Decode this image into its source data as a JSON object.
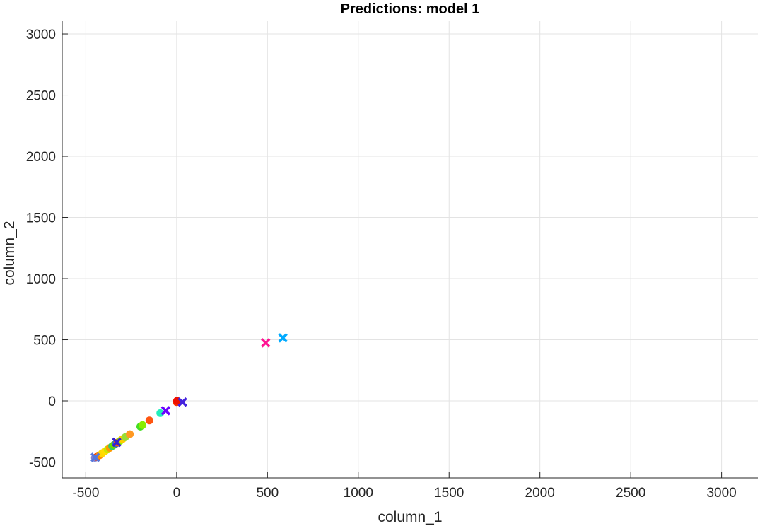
{
  "chart_data": {
    "type": "scatter",
    "title": "Predictions: model 1",
    "xlabel": "column_1",
    "ylabel": "column_2",
    "xlim": [
      -630,
      3200
    ],
    "ylim": [
      -630,
      3110
    ],
    "xticks": [
      -500,
      0,
      500,
      1000,
      1500,
      2000,
      2500,
      3000
    ],
    "yticks": [
      -500,
      0,
      500,
      1000,
      1500,
      2000,
      2500,
      3000
    ],
    "xtick_labels": [
      "-500",
      "0",
      "500",
      "1000",
      "1500",
      "2000",
      "2500",
      "3000"
    ],
    "ytick_labels": [
      "-500",
      "0",
      "500",
      "1000",
      "1500",
      "2000",
      "2500",
      "3000"
    ],
    "grid": true,
    "series": [
      {
        "marker": "circle",
        "points": [
          {
            "x": -450,
            "y": -465,
            "color": "#7f7fcf"
          },
          {
            "x": -440,
            "y": -458,
            "color": "#e8381a"
          },
          {
            "x": -425,
            "y": -445,
            "color": "#ff8c00"
          },
          {
            "x": -410,
            "y": -428,
            "color": "#ffd700"
          },
          {
            "x": -395,
            "y": -412,
            "color": "#ffdd00"
          },
          {
            "x": -380,
            "y": -397,
            "color": "#c8e600"
          },
          {
            "x": -368,
            "y": -384,
            "color": "#ff9900"
          },
          {
            "x": -355,
            "y": -370,
            "color": "#33cc66"
          },
          {
            "x": -345,
            "y": -360,
            "color": "#66dd00"
          },
          {
            "x": -333,
            "y": -348,
            "color": "#3366cc"
          },
          {
            "x": -325,
            "y": -340,
            "color": "#ff5500"
          },
          {
            "x": -312,
            "y": -327,
            "color": "#99ee00"
          },
          {
            "x": -298,
            "y": -312,
            "color": "#ffcc00"
          },
          {
            "x": -283,
            "y": -297,
            "color": "#99dd33"
          },
          {
            "x": -258,
            "y": -272,
            "color": "#ff9922"
          },
          {
            "x": -200,
            "y": -210,
            "color": "#44dd22"
          },
          {
            "x": -188,
            "y": -198,
            "color": "#88ee00"
          },
          {
            "x": -150,
            "y": -160,
            "color": "#ff5511"
          },
          {
            "x": -90,
            "y": -100,
            "color": "#22eebb"
          },
          {
            "x": 0,
            "y": -10,
            "color": "#ff3300"
          },
          {
            "x": 2,
            "y": 0,
            "color": "#ee1100"
          }
        ]
      },
      {
        "marker": "x",
        "points": [
          {
            "x": -448,
            "y": -462,
            "color": "#5577dd"
          },
          {
            "x": -330,
            "y": -338,
            "color": "#3322cc"
          },
          {
            "x": -60,
            "y": -80,
            "color": "#6a00ff"
          },
          {
            "x": 32,
            "y": -10,
            "color": "#4422dd"
          },
          {
            "x": 490,
            "y": 475,
            "color": "#ff1493"
          },
          {
            "x": 585,
            "y": 515,
            "color": "#00aaff"
          }
        ]
      }
    ]
  }
}
